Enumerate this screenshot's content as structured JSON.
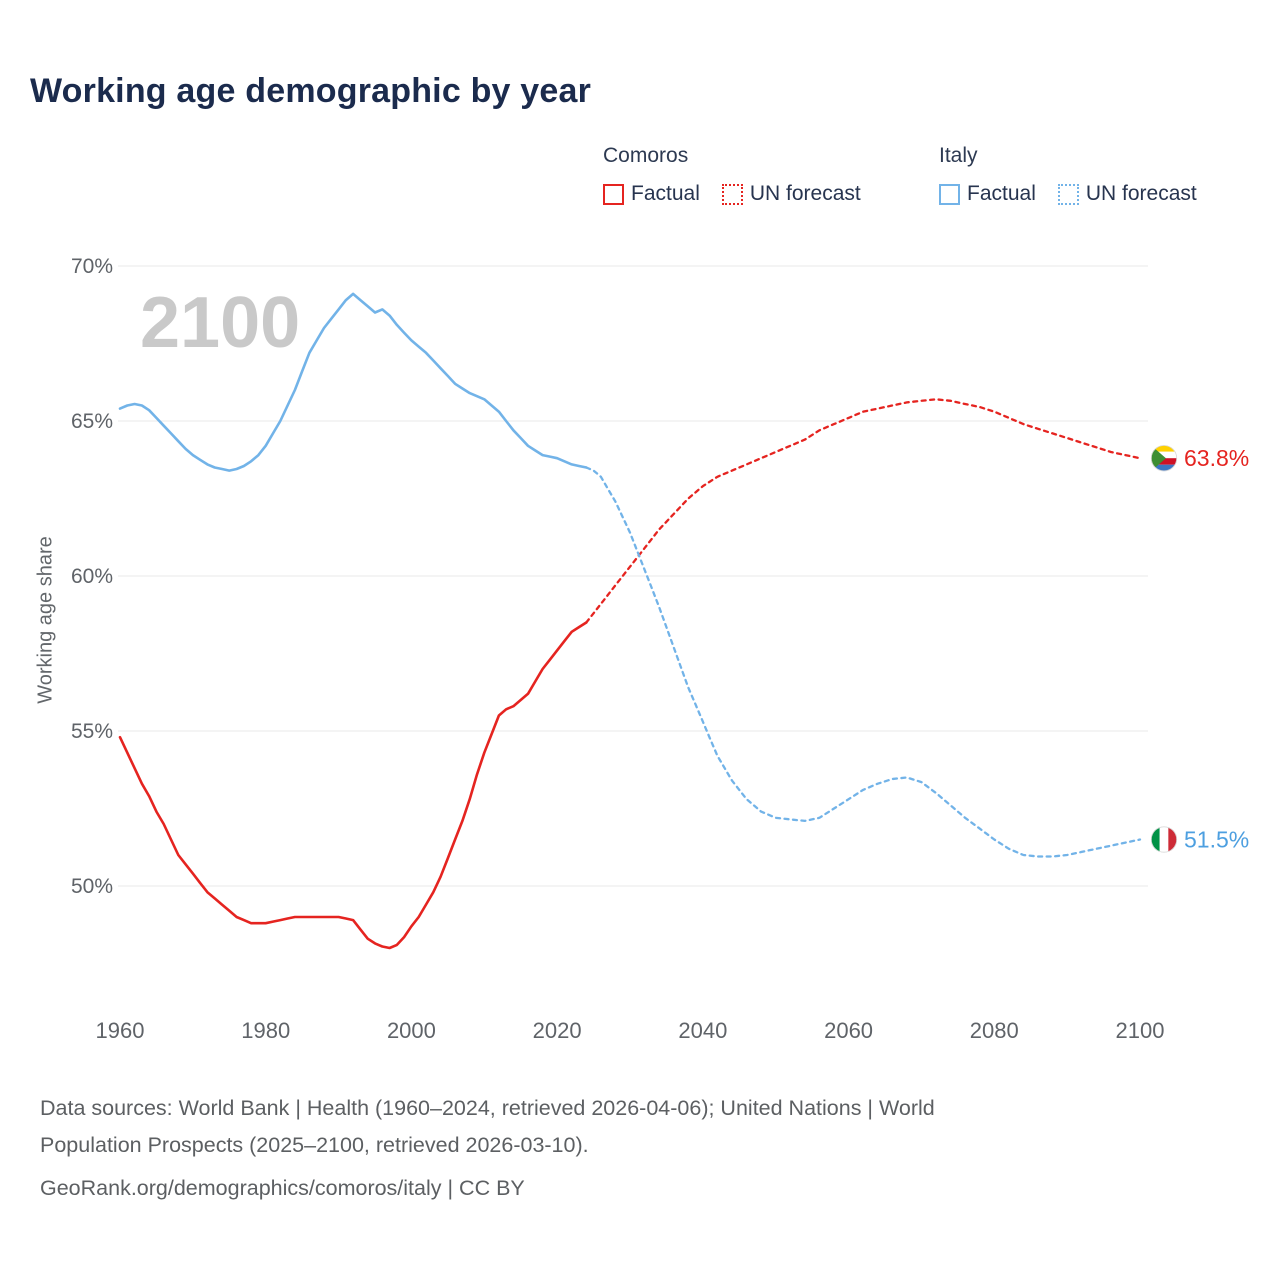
{
  "title": "Working age demographic by year",
  "watermark": "2100",
  "legend": {
    "groups": [
      {
        "country": "Comoros",
        "color": "#e52420",
        "items": [
          {
            "label": "Factual",
            "style": "solid"
          },
          {
            "label": "UN forecast",
            "style": "dashed"
          }
        ]
      },
      {
        "country": "Italy",
        "color": "#72b3e8",
        "items": [
          {
            "label": "Factual",
            "style": "solid"
          },
          {
            "label": "UN forecast",
            "style": "dashed"
          }
        ]
      }
    ]
  },
  "end_labels": [
    {
      "text": "63.8%",
      "value": 63.8,
      "color": "#e52420",
      "flag": "comoros"
    },
    {
      "text": "51.5%",
      "value": 51.5,
      "color": "#4d9fe0",
      "flag": "italy"
    }
  ],
  "footer": {
    "line1": "Data sources: World Bank | Health (1960–2024, retrieved 2026-04-06); United Nations | World",
    "line2": "Population Prospects (2025–2100, retrieved 2026-03-10).",
    "line3": "GeoRank.org/demographics/comoros/italy | CC BY"
  },
  "chart_data": {
    "type": "line",
    "title": "Working age demographic by year",
    "xlabel": "",
    "ylabel": "Working age share",
    "x_domain": [
      1960,
      2100
    ],
    "y_domain": [
      50,
      70
    ],
    "ylim": [
      47.5,
      70.5
    ],
    "grid": "horizontal",
    "x_ticks": [
      1960,
      1980,
      2000,
      2020,
      2040,
      2060,
      2080,
      2100
    ],
    "x_tick_labels": [
      "1960",
      "1980",
      "2000",
      "2020",
      "2040",
      "2060",
      "2080",
      "2100"
    ],
    "y_ticks": [
      50,
      55,
      60,
      65,
      70
    ],
    "y_tick_labels": [
      "50%",
      "55%",
      "60%",
      "65%",
      "70%"
    ],
    "legend_position": "top-right",
    "series": [
      {
        "name": "Comoros Factual",
        "key": "comoros-factual",
        "color": "#e52420",
        "dash": false,
        "points": [
          [
            1960,
            54.8
          ],
          [
            1961,
            54.3
          ],
          [
            1962,
            53.8
          ],
          [
            1963,
            53.3
          ],
          [
            1964,
            52.9
          ],
          [
            1965,
            52.4
          ],
          [
            1966,
            52.0
          ],
          [
            1967,
            51.5
          ],
          [
            1968,
            51.0
          ],
          [
            1969,
            50.7
          ],
          [
            1970,
            50.4
          ],
          [
            1971,
            50.1
          ],
          [
            1972,
            49.8
          ],
          [
            1973,
            49.6
          ],
          [
            1974,
            49.4
          ],
          [
            1975,
            49.2
          ],
          [
            1976,
            49.0
          ],
          [
            1977,
            48.9
          ],
          [
            1978,
            48.8
          ],
          [
            1979,
            48.8
          ],
          [
            1980,
            48.8
          ],
          [
            1981,
            48.85
          ],
          [
            1982,
            48.9
          ],
          [
            1983,
            48.95
          ],
          [
            1984,
            49.0
          ],
          [
            1985,
            49.0
          ],
          [
            1986,
            49.0
          ],
          [
            1987,
            49.0
          ],
          [
            1988,
            49.0
          ],
          [
            1989,
            49.0
          ],
          [
            1990,
            49.0
          ],
          [
            1991,
            48.95
          ],
          [
            1992,
            48.9
          ],
          [
            1993,
            48.6
          ],
          [
            1994,
            48.3
          ],
          [
            1995,
            48.15
          ],
          [
            1996,
            48.05
          ],
          [
            1997,
            48.0
          ],
          [
            1998,
            48.1
          ],
          [
            1999,
            48.35
          ],
          [
            2000,
            48.7
          ],
          [
            2001,
            49.0
          ],
          [
            2002,
            49.4
          ],
          [
            2003,
            49.8
          ],
          [
            2004,
            50.3
          ],
          [
            2005,
            50.9
          ],
          [
            2006,
            51.5
          ],
          [
            2007,
            52.1
          ],
          [
            2008,
            52.8
          ],
          [
            2009,
            53.6
          ],
          [
            2010,
            54.3
          ],
          [
            2011,
            54.9
          ],
          [
            2012,
            55.5
          ],
          [
            2013,
            55.7
          ],
          [
            2014,
            55.8
          ],
          [
            2015,
            56.0
          ],
          [
            2016,
            56.2
          ],
          [
            2017,
            56.6
          ],
          [
            2018,
            57.0
          ],
          [
            2019,
            57.3
          ],
          [
            2020,
            57.6
          ],
          [
            2021,
            57.9
          ],
          [
            2022,
            58.2
          ],
          [
            2023,
            58.35
          ],
          [
            2024,
            58.5
          ]
        ]
      },
      {
        "name": "Comoros UN forecast",
        "key": "comoros-forecast",
        "color": "#e52420",
        "dash": true,
        "points": [
          [
            2024,
            58.5
          ],
          [
            2026,
            59.1
          ],
          [
            2028,
            59.7
          ],
          [
            2030,
            60.3
          ],
          [
            2032,
            60.9
          ],
          [
            2034,
            61.5
          ],
          [
            2036,
            62.0
          ],
          [
            2038,
            62.5
          ],
          [
            2040,
            62.9
          ],
          [
            2042,
            63.2
          ],
          [
            2044,
            63.4
          ],
          [
            2046,
            63.6
          ],
          [
            2048,
            63.8
          ],
          [
            2050,
            64.0
          ],
          [
            2052,
            64.2
          ],
          [
            2054,
            64.4
          ],
          [
            2056,
            64.7
          ],
          [
            2058,
            64.9
          ],
          [
            2060,
            65.1
          ],
          [
            2062,
            65.3
          ],
          [
            2064,
            65.4
          ],
          [
            2066,
            65.5
          ],
          [
            2068,
            65.6
          ],
          [
            2070,
            65.65
          ],
          [
            2072,
            65.7
          ],
          [
            2074,
            65.65
          ],
          [
            2076,
            65.55
          ],
          [
            2078,
            65.45
          ],
          [
            2080,
            65.3
          ],
          [
            2082,
            65.1
          ],
          [
            2084,
            64.9
          ],
          [
            2086,
            64.75
          ],
          [
            2088,
            64.6
          ],
          [
            2090,
            64.45
          ],
          [
            2092,
            64.3
          ],
          [
            2094,
            64.15
          ],
          [
            2096,
            64.0
          ],
          [
            2098,
            63.9
          ],
          [
            2100,
            63.8
          ]
        ]
      },
      {
        "name": "Italy Factual",
        "key": "italy-factual",
        "color": "#72b3e8",
        "dash": false,
        "points": [
          [
            1960,
            65.4
          ],
          [
            1961,
            65.5
          ],
          [
            1962,
            65.55
          ],
          [
            1963,
            65.5
          ],
          [
            1964,
            65.35
          ],
          [
            1965,
            65.1
          ],
          [
            1966,
            64.85
          ],
          [
            1967,
            64.6
          ],
          [
            1968,
            64.35
          ],
          [
            1969,
            64.1
          ],
          [
            1970,
            63.9
          ],
          [
            1971,
            63.75
          ],
          [
            1972,
            63.6
          ],
          [
            1973,
            63.5
          ],
          [
            1974,
            63.45
          ],
          [
            1975,
            63.4
          ],
          [
            1976,
            63.45
          ],
          [
            1977,
            63.55
          ],
          [
            1978,
            63.7
          ],
          [
            1979,
            63.9
          ],
          [
            1980,
            64.2
          ],
          [
            1981,
            64.6
          ],
          [
            1982,
            65.0
          ],
          [
            1983,
            65.5
          ],
          [
            1984,
            66.0
          ],
          [
            1985,
            66.6
          ],
          [
            1986,
            67.2
          ],
          [
            1987,
            67.6
          ],
          [
            1988,
            68.0
          ],
          [
            1989,
            68.3
          ],
          [
            1990,
            68.6
          ],
          [
            1991,
            68.9
          ],
          [
            1992,
            69.1
          ],
          [
            1993,
            68.9
          ],
          [
            1994,
            68.7
          ],
          [
            1995,
            68.5
          ],
          [
            1996,
            68.6
          ],
          [
            1997,
            68.4
          ],
          [
            1998,
            68.1
          ],
          [
            1999,
            67.85
          ],
          [
            2000,
            67.6
          ],
          [
            2001,
            67.4
          ],
          [
            2002,
            67.2
          ],
          [
            2003,
            66.95
          ],
          [
            2004,
            66.7
          ],
          [
            2005,
            66.45
          ],
          [
            2006,
            66.2
          ],
          [
            2007,
            66.05
          ],
          [
            2008,
            65.9
          ],
          [
            2009,
            65.8
          ],
          [
            2010,
            65.7
          ],
          [
            2011,
            65.5
          ],
          [
            2012,
            65.3
          ],
          [
            2013,
            65.0
          ],
          [
            2014,
            64.7
          ],
          [
            2015,
            64.45
          ],
          [
            2016,
            64.2
          ],
          [
            2017,
            64.05
          ],
          [
            2018,
            63.9
          ],
          [
            2019,
            63.85
          ],
          [
            2020,
            63.8
          ],
          [
            2021,
            63.7
          ],
          [
            2022,
            63.6
          ],
          [
            2023,
            63.55
          ],
          [
            2024,
            63.5
          ]
        ]
      },
      {
        "name": "Italy UN forecast",
        "key": "italy-forecast",
        "color": "#72b3e8",
        "dash": true,
        "points": [
          [
            2024,
            63.5
          ],
          [
            2025,
            63.4
          ],
          [
            2026,
            63.2
          ],
          [
            2027,
            62.8
          ],
          [
            2028,
            62.4
          ],
          [
            2029,
            61.9
          ],
          [
            2030,
            61.4
          ],
          [
            2031,
            60.8
          ],
          [
            2032,
            60.2
          ],
          [
            2033,
            59.6
          ],
          [
            2034,
            59.0
          ],
          [
            2035,
            58.35
          ],
          [
            2036,
            57.7
          ],
          [
            2037,
            57.05
          ],
          [
            2038,
            56.4
          ],
          [
            2039,
            55.85
          ],
          [
            2040,
            55.3
          ],
          [
            2041,
            54.75
          ],
          [
            2042,
            54.2
          ],
          [
            2043,
            53.8
          ],
          [
            2044,
            53.4
          ],
          [
            2045,
            53.1
          ],
          [
            2046,
            52.8
          ],
          [
            2047,
            52.6
          ],
          [
            2048,
            52.4
          ],
          [
            2049,
            52.3
          ],
          [
            2050,
            52.2
          ],
          [
            2052,
            52.15
          ],
          [
            2054,
            52.1
          ],
          [
            2056,
            52.2
          ],
          [
            2058,
            52.5
          ],
          [
            2060,
            52.8
          ],
          [
            2062,
            53.1
          ],
          [
            2064,
            53.3
          ],
          [
            2066,
            53.45
          ],
          [
            2068,
            53.5
          ],
          [
            2070,
            53.35
          ],
          [
            2072,
            53.0
          ],
          [
            2074,
            52.6
          ],
          [
            2076,
            52.2
          ],
          [
            2078,
            51.85
          ],
          [
            2080,
            51.5
          ],
          [
            2082,
            51.2
          ],
          [
            2084,
            51.0
          ],
          [
            2086,
            50.95
          ],
          [
            2088,
            50.95
          ],
          [
            2090,
            51.0
          ],
          [
            2092,
            51.1
          ],
          [
            2094,
            51.2
          ],
          [
            2096,
            51.3
          ],
          [
            2098,
            51.4
          ],
          [
            2100,
            51.5
          ]
        ]
      }
    ]
  }
}
